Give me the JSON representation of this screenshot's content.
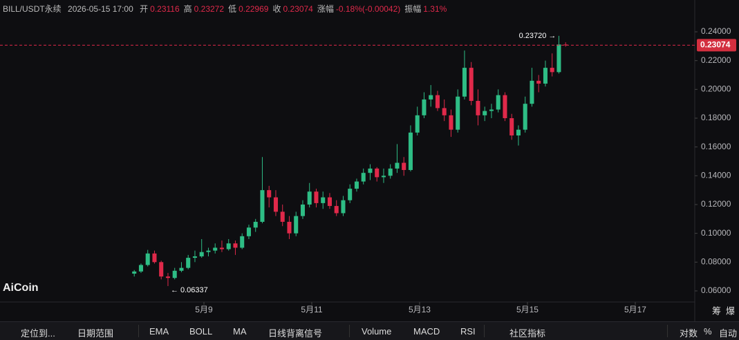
{
  "header": {
    "symbol": "BILL/USDT永续",
    "time": "2026-05-15 17:00",
    "items": [
      {
        "label": "开",
        "value": "0.23116"
      },
      {
        "label": "高",
        "value": "0.23272"
      },
      {
        "label": "低",
        "value": "0.22969"
      },
      {
        "label": "收",
        "value": "0.23074"
      },
      {
        "label": "涨幅",
        "value": "-0.18%(-0.00042)"
      },
      {
        "label": "振幅",
        "value": "1.31%"
      }
    ]
  },
  "logo": "AiCoin",
  "corner": [
    "筹",
    "爆"
  ],
  "toolbar": {
    "left": [
      "定位到...",
      "日期范围"
    ],
    "indicators": [
      "EMA",
      "BOLL",
      "MA",
      "日线背离信号"
    ],
    "sub": [
      "Volume",
      "MACD",
      "RSI",
      "社区指标"
    ],
    "right": [
      "对数",
      "%",
      "自动"
    ]
  },
  "chart_data": {
    "type": "candlestick",
    "up_color": "#2ebd85",
    "down_color": "#e0294a",
    "x": [
      7.708,
      7.833,
      7.958,
      8.083,
      8.208,
      8.333,
      8.458,
      8.583,
      8.708,
      8.833,
      8.958,
      9.083,
      9.208,
      9.333,
      9.458,
      9.583,
      9.708,
      9.833,
      9.958,
      10.083,
      10.208,
      10.333,
      10.458,
      10.583,
      10.708,
      10.833,
      10.958,
      11.083,
      11.208,
      11.333,
      11.458,
      11.583,
      11.708,
      11.833,
      11.958,
      12.083,
      12.208,
      12.333,
      12.458,
      12.583,
      12.708,
      12.833,
      12.958,
      13.083,
      13.208,
      13.333,
      13.458,
      13.583,
      13.708,
      13.833,
      13.958,
      14.083,
      14.208,
      14.333,
      14.458,
      14.583,
      14.708,
      14.833,
      14.958,
      15.083,
      15.208,
      15.333,
      15.458,
      15.583,
      15.708
    ],
    "open": [
      0.072,
      0.0735,
      0.078,
      0.086,
      0.08,
      0.07,
      0.069,
      0.074,
      0.076,
      0.083,
      0.084,
      0.087,
      0.088,
      0.09,
      0.089,
      0.093,
      0.09,
      0.098,
      0.104,
      0.108,
      0.13,
      0.125,
      0.115,
      0.108,
      0.1,
      0.112,
      0.12,
      0.129,
      0.121,
      0.125,
      0.119,
      0.114,
      0.123,
      0.131,
      0.136,
      0.142,
      0.145,
      0.139,
      0.14,
      0.145,
      0.149,
      0.144,
      0.17,
      0.182,
      0.193,
      0.196,
      0.187,
      0.182,
      0.172,
      0.195,
      0.215,
      0.192,
      0.182,
      0.185,
      0.186,
      0.196,
      0.18,
      0.168,
      0.172,
      0.19,
      0.206,
      0.204,
      0.215,
      0.212,
      0.23116
    ],
    "high": [
      0.0745,
      0.079,
      0.0885,
      0.088,
      0.081,
      0.0725,
      0.076,
      0.08,
      0.085,
      0.088,
      0.096,
      0.09,
      0.093,
      0.095,
      0.096,
      0.095,
      0.1,
      0.106,
      0.11,
      0.153,
      0.133,
      0.13,
      0.12,
      0.112,
      0.115,
      0.123,
      0.135,
      0.131,
      0.129,
      0.128,
      0.123,
      0.126,
      0.134,
      0.138,
      0.145,
      0.148,
      0.146,
      0.145,
      0.148,
      0.162,
      0.153,
      0.175,
      0.188,
      0.198,
      0.203,
      0.199,
      0.193,
      0.186,
      0.2,
      0.227,
      0.219,
      0.2,
      0.188,
      0.19,
      0.2,
      0.198,
      0.183,
      0.175,
      0.195,
      0.215,
      0.21,
      0.22,
      0.225,
      0.2372,
      0.23272
    ],
    "low": [
      0.07,
      0.0725,
      0.077,
      0.079,
      0.068,
      0.06337,
      0.068,
      0.073,
      0.075,
      0.08,
      0.083,
      0.084,
      0.086,
      0.087,
      0.088,
      0.085,
      0.089,
      0.096,
      0.101,
      0.107,
      0.118,
      0.112,
      0.105,
      0.096,
      0.098,
      0.11,
      0.118,
      0.118,
      0.117,
      0.117,
      0.112,
      0.112,
      0.121,
      0.129,
      0.134,
      0.137,
      0.136,
      0.135,
      0.138,
      0.142,
      0.14,
      0.143,
      0.168,
      0.18,
      0.188,
      0.185,
      0.178,
      0.167,
      0.17,
      0.193,
      0.189,
      0.175,
      0.178,
      0.18,
      0.184,
      0.178,
      0.165,
      0.161,
      0.17,
      0.188,
      0.198,
      0.202,
      0.209,
      0.211,
      0.22969
    ],
    "close": [
      0.0735,
      0.078,
      0.086,
      0.08,
      0.07,
      0.069,
      0.074,
      0.076,
      0.083,
      0.084,
      0.087,
      0.088,
      0.09,
      0.089,
      0.093,
      0.09,
      0.098,
      0.104,
      0.108,
      0.13,
      0.125,
      0.115,
      0.108,
      0.1,
      0.112,
      0.12,
      0.129,
      0.121,
      0.125,
      0.119,
      0.114,
      0.123,
      0.131,
      0.136,
      0.142,
      0.145,
      0.139,
      0.14,
      0.145,
      0.149,
      0.144,
      0.17,
      0.182,
      0.193,
      0.196,
      0.187,
      0.182,
      0.172,
      0.195,
      0.215,
      0.192,
      0.182,
      0.185,
      0.186,
      0.196,
      0.18,
      0.168,
      0.172,
      0.19,
      0.206,
      0.204,
      0.215,
      0.212,
      0.2312,
      0.23074
    ],
    "xlim": [
      5.218,
      18.103
    ],
    "xticks": [
      {
        "value": 9,
        "label": "5月9"
      },
      {
        "value": 11,
        "label": "5月11"
      },
      {
        "value": 13,
        "label": "5月13"
      },
      {
        "value": 15,
        "label": "5月15"
      },
      {
        "value": 17,
        "label": "5月17"
      }
    ],
    "ylim": [
      0.0523,
      0.2621
    ],
    "yticks": [
      {
        "value": 0.06,
        "label": "0.06000"
      },
      {
        "value": 0.08,
        "label": "0.08000"
      },
      {
        "value": 0.1,
        "label": "0.10000"
      },
      {
        "value": 0.12,
        "label": "0.12000"
      },
      {
        "value": 0.14,
        "label": "0.14000"
      },
      {
        "value": 0.16,
        "label": "0.16000"
      },
      {
        "value": 0.18,
        "label": "0.18000"
      },
      {
        "value": 0.2,
        "label": "0.20000"
      },
      {
        "value": 0.22,
        "label": "0.22000"
      },
      {
        "value": 0.24,
        "label": "0.24000"
      }
    ],
    "last_price": {
      "value": 0.23074,
      "label": "0.23074"
    },
    "max_label": {
      "value": 0.2372,
      "label": "0.23720 →"
    },
    "min_label": {
      "value": 0.06337,
      "label": "← 0.06337"
    }
  }
}
